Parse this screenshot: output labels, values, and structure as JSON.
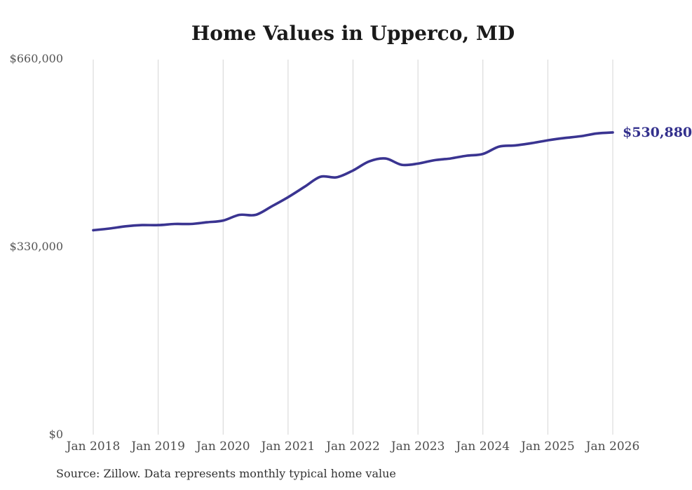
{
  "title": "Home Values in Upperco, MD",
  "source_note": "Source: Zillow. Data represents monthly typical home value",
  "colors": {
    "line": "#3a3491",
    "end_label": "#33308d",
    "gridline": "#d4d4d4",
    "tick_text": "#555555",
    "title_text": "#1a1a1a",
    "source_text": "#333333",
    "background": "#ffffff"
  },
  "y_axis": {
    "ticks": [
      {
        "label": "$660,000",
        "value": 660000
      },
      {
        "label": "$330,000",
        "value": 330000
      },
      {
        "label": "$0",
        "value": 0
      }
    ]
  },
  "x_axis": {
    "ticks": [
      "Jan 2018",
      "Jan 2019",
      "Jan 2020",
      "Jan 2021",
      "Jan 2022",
      "Jan 2023",
      "Jan 2024",
      "Jan 2025",
      "Jan 2026"
    ]
  },
  "chart_data": {
    "type": "line",
    "title": "Home Values in Upperco, MD",
    "xlabel": "",
    "ylabel": "",
    "ylim": [
      0,
      660000
    ],
    "grid": "vertical",
    "legend": "none",
    "x": [
      "2018-01",
      "2018-04",
      "2018-07",
      "2018-10",
      "2019-01",
      "2019-04",
      "2019-07",
      "2019-10",
      "2020-01",
      "2020-04",
      "2020-07",
      "2020-10",
      "2021-01",
      "2021-04",
      "2021-07",
      "2021-10",
      "2022-01",
      "2022-04",
      "2022-07",
      "2022-10",
      "2023-01",
      "2023-04",
      "2023-07",
      "2023-10",
      "2024-01",
      "2024-04",
      "2024-07",
      "2024-10",
      "2025-01",
      "2025-04",
      "2025-07",
      "2025-10",
      "2026-01"
    ],
    "values": [
      359000,
      362000,
      366000,
      368000,
      368000,
      370000,
      370000,
      373000,
      376000,
      386000,
      386000,
      401000,
      417000,
      435000,
      453000,
      452000,
      464000,
      480000,
      485000,
      474000,
      476000,
      482000,
      485000,
      490000,
      493000,
      506000,
      508000,
      512000,
      517000,
      521000,
      524000,
      529000,
      530880
    ],
    "end_label": "$530,880",
    "end_value": 530880
  }
}
